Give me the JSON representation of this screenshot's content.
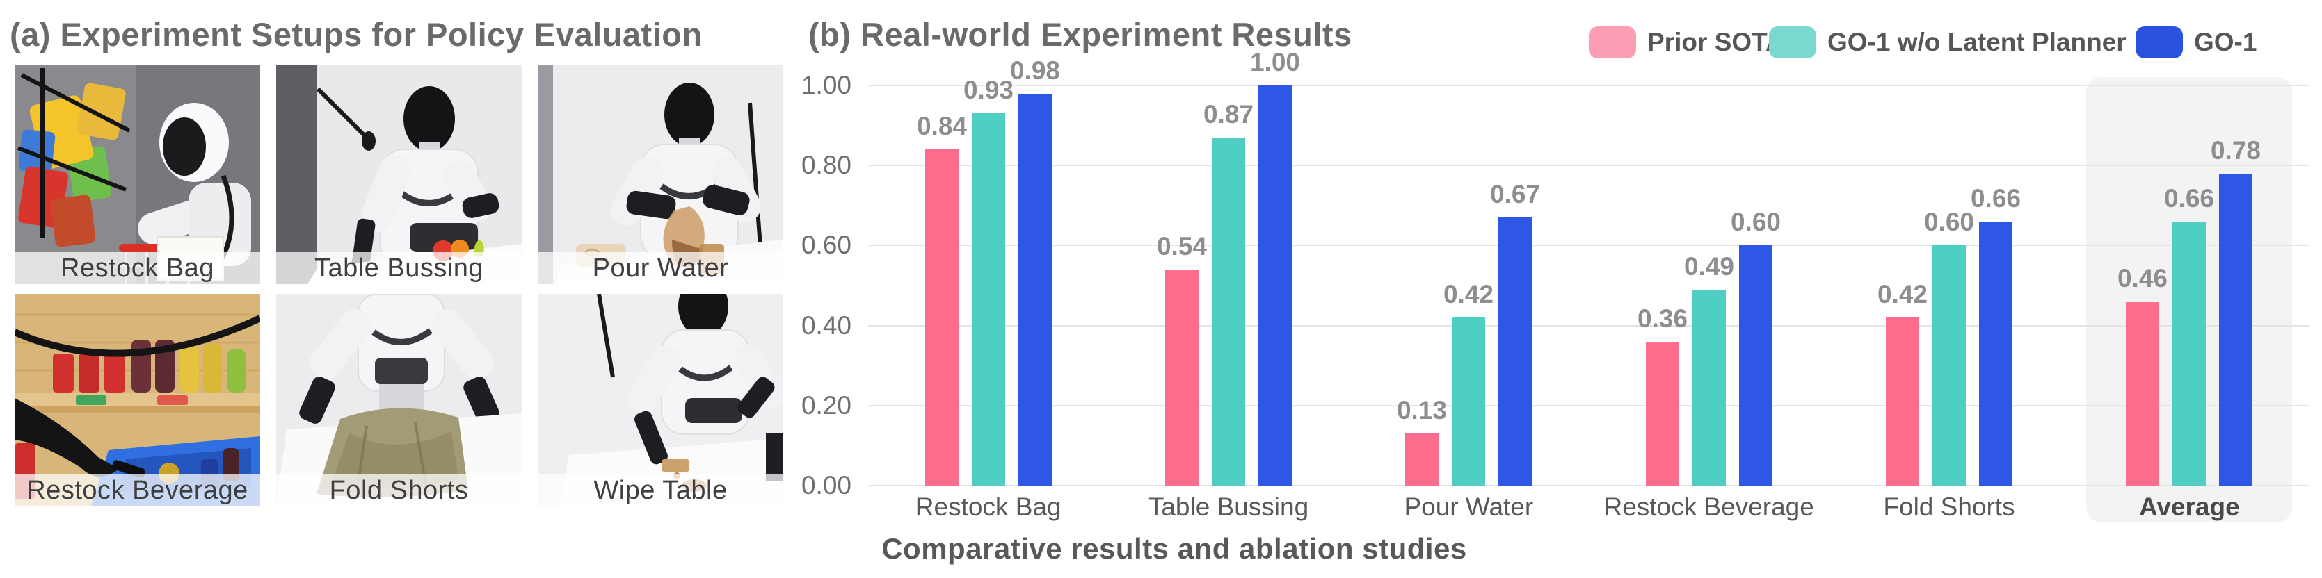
{
  "panel_a": {
    "title": "(a) Experiment Setups for Policy Evaluation",
    "tiles": [
      {
        "label": "Restock Bag"
      },
      {
        "label": "Table Bussing"
      },
      {
        "label": "Pour Water"
      },
      {
        "label": "Restock Beverage"
      },
      {
        "label": "Fold Shorts"
      },
      {
        "label": "Wipe Table"
      }
    ]
  },
  "panel_b": {
    "title": "(b) Real-world Experiment Results",
    "caption": "Comparative results and ablation studies"
  },
  "chart_data": {
    "type": "bar",
    "title": "(b) Real-world Experiment Results",
    "categories": [
      "Restock Bag",
      "Table Bussing",
      "Pour Water",
      "Restock Beverage",
      "Fold Shorts",
      "Average"
    ],
    "series": [
      {
        "name": "Prior SOTA",
        "color": "#FB6C8D",
        "legend_color": "#FC9DB4",
        "values": [
          0.84,
          0.54,
          0.13,
          0.36,
          0.42,
          0.46
        ]
      },
      {
        "name": "GO-1 w/o Latent Planner",
        "color": "#4FCEC4",
        "legend_color": "#79D8D0",
        "values": [
          0.93,
          0.87,
          0.42,
          0.49,
          0.6,
          0.66
        ]
      },
      {
        "name": "GO-1",
        "color": "#2E57E6",
        "legend_color": "#2B52DF",
        "values": [
          0.98,
          1.0,
          0.67,
          0.6,
          0.66,
          0.78
        ]
      }
    ],
    "y_ticks": [
      "0.00",
      "0.20",
      "0.40",
      "0.60",
      "0.80",
      "1.00"
    ],
    "ylim": [
      0,
      1.0
    ],
    "grid": true,
    "legend_position": "top-right",
    "highlight_category": "Average",
    "xlabel": "",
    "ylabel": "",
    "value_labels": true
  }
}
